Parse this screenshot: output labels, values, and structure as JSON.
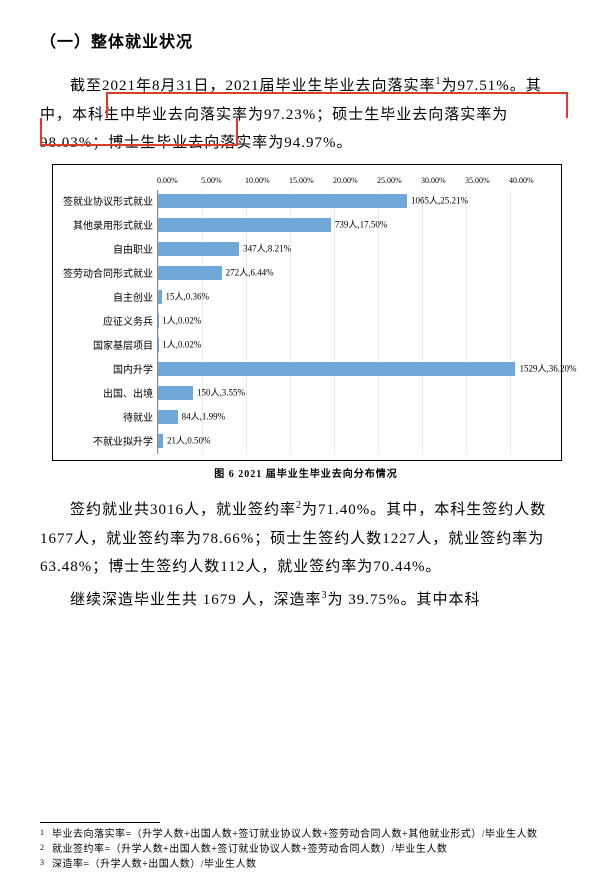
{
  "heading": "（一）整体就业状况",
  "para1_a": "截至2021年8月31日，2021届毕业生毕业去向落实率",
  "para1_sup": "1",
  "para1_b": "为97.51%。",
  "para1_hl": "其中，本科生中毕业去向落实率为97.23%；硕士生毕业去向落实率为98.03%；",
  "para1_c": "博士生毕业去向落实率为94.97%。",
  "chart": {
    "axis_ticks": [
      "0.00%",
      "5.00%",
      "10.00%",
      "15.00%",
      "20.00%",
      "25.00%",
      "30.00%",
      "35.00%",
      "40.00%"
    ],
    "bar_color": "#6fa8d6",
    "xmax": 40,
    "rows": [
      {
        "label": "签就业协议形式就业",
        "pct": 25.21,
        "count": 1065,
        "text": "1065人,25.21%"
      },
      {
        "label": "其他录用形式就业",
        "pct": 17.5,
        "count": 739,
        "text": "739人,17.50%"
      },
      {
        "label": "自由职业",
        "pct": 8.21,
        "count": 347,
        "text": "347人,8.21%"
      },
      {
        "label": "签劳动合同形式就业",
        "pct": 6.44,
        "count": 272,
        "text": "272人,6.44%"
      },
      {
        "label": "自主创业",
        "pct": 0.36,
        "count": 15,
        "text": "15人,0.36%"
      },
      {
        "label": "应征义务兵",
        "pct": 0.02,
        "count": 1,
        "text": "1人,0.02%"
      },
      {
        "label": "国家基层项目",
        "pct": 0.02,
        "count": 1,
        "text": "1人,0.02%"
      },
      {
        "label": "国内升学",
        "pct": 36.2,
        "count": 1529,
        "text": "1529人,36.20%"
      },
      {
        "label": "出国、出境",
        "pct": 3.55,
        "count": 150,
        "text": "150人,3.55%"
      },
      {
        "label": "待就业",
        "pct": 1.99,
        "count": 84,
        "text": "84人,1.99%"
      },
      {
        "label": "不就业拟升学",
        "pct": 0.5,
        "count": 21,
        "text": "21人,0.50%"
      }
    ],
    "caption": "图 6  2021 届毕业生毕业去向分布情况"
  },
  "para2_a": "签约就业共3016人，就业签约率",
  "para2_sup": "2",
  "para2_b": "为71.40%。其中，本科生签约人数1677人，就业签约率为78.66%；硕士生签约人数1227人，就业签约率为63.48%；博士生签约人数112人，就业签约率为70.44%。",
  "para3_a": "继续深造毕业生共 1679 人，深造率",
  "para3_sup": "3",
  "para3_b": "为 39.75%。其中本科",
  "footnotes": [
    {
      "n": "1",
      "text": "毕业去向落实率=（升学人数+出国人数+签订就业协议人数+签劳动合同人数+其他就业形式）/毕业生人数"
    },
    {
      "n": "2",
      "text": "就业签约率=（升学人数+出国人数+签订就业协议人数+签劳动合同人数）/毕业生人数"
    },
    {
      "n": "3",
      "text": "深造率=（升学人数+出国人数）/毕业生人数"
    }
  ]
}
